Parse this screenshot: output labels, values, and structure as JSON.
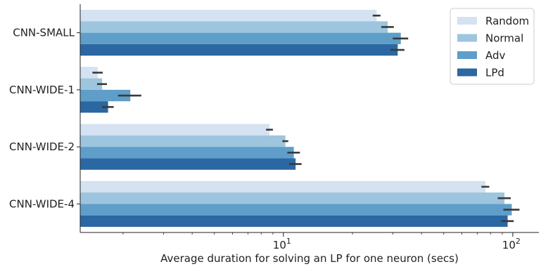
{
  "chart_data": {
    "type": "bar",
    "orientation": "horizontal",
    "title": "",
    "xlabel": "Average duration for solving an LP for one neuron (secs)",
    "ylabel": "",
    "xscale": "log",
    "xlim": [
      1.3,
      130
    ],
    "x_tick_labels": [
      "10^1",
      "10^2"
    ],
    "categories": [
      "CNN-SMALL",
      "CNN-WIDE-1",
      "CNN-WIDE-2",
      "CNN-WIDE-4"
    ],
    "series": [
      {
        "name": "Random",
        "color": "#d4e2f1",
        "values": [
          25.5,
          1.55,
          8.7,
          76
        ],
        "err": [
          1.0,
          0.08,
          0.3,
          3
        ]
      },
      {
        "name": "Normal",
        "color": "#9dc5de",
        "values": [
          28.5,
          1.62,
          10.2,
          92
        ],
        "err": [
          1.8,
          0.08,
          0.3,
          6
        ]
      },
      {
        "name": "Adv",
        "color": "#5e9ec9",
        "values": [
          32.5,
          2.15,
          11.1,
          99
        ],
        "err": [
          2.5,
          0.25,
          0.7,
          8
        ]
      },
      {
        "name": "LPd",
        "color": "#2b67a2",
        "values": [
          31.5,
          1.72,
          11.3,
          95
        ],
        "err": [
          2.2,
          0.1,
          0.7,
          6
        ]
      }
    ],
    "legend_position": "top-right",
    "grid": false
  }
}
